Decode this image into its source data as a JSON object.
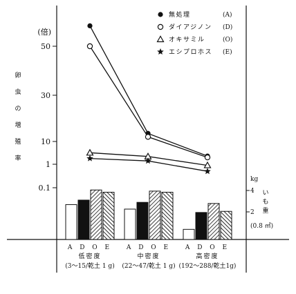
{
  "chart_data": {
    "type": "line",
    "y_unit": "(倍)",
    "y_title": "卵虫の増殖率",
    "y_ticks": [
      "50",
      "30",
      "10",
      "1",
      "0.1"
    ],
    "y2_unit": "kg",
    "y2_title": "いも重",
    "y2_area": "(0.8 ㎡)",
    "y2_ticks": [
      "4",
      "2"
    ],
    "group_letters": [
      "A",
      "D",
      "O",
      "E"
    ],
    "groups": [
      {
        "name": "低密度",
        "range": "(3～15/乾土 1 g)"
      },
      {
        "name": "中密度",
        "range": "(22～47/乾土 1 g)"
      },
      {
        "name": "高密度",
        "range": "(192～288/乾土1g)"
      }
    ],
    "series": [
      {
        "name": "無処理",
        "code": "(A)",
        "marker": "filled-circle",
        "values": [
          58,
          13.5,
          2.3
        ]
      },
      {
        "name": "ダイアジノン",
        "code": "(D)",
        "marker": "open-circle",
        "values": [
          50,
          12,
          2.0
        ]
      },
      {
        "name": "オキサミル",
        "code": "(O)",
        "marker": "open-triangle",
        "values": [
          3.2,
          2.2,
          0.9
        ]
      },
      {
        "name": "エシプロホス",
        "code": "(E)",
        "marker": "star",
        "values": [
          1.8,
          1.4,
          0.5
        ]
      }
    ],
    "bars": {
      "unit": "kg",
      "groups": [
        {
          "A": 3.1,
          "D": 3.5,
          "O": 4.4,
          "E": 4.2
        },
        {
          "A": 2.7,
          "D": 3.3,
          "O": 4.3,
          "E": 4.2
        },
        {
          "A": 0.9,
          "D": 2.4,
          "O": 3.2,
          "E": 2.5
        }
      ]
    }
  },
  "colors": {
    "ink": "#111111",
    "bar_light": "#ffffff",
    "bar_dark": "#111111"
  }
}
